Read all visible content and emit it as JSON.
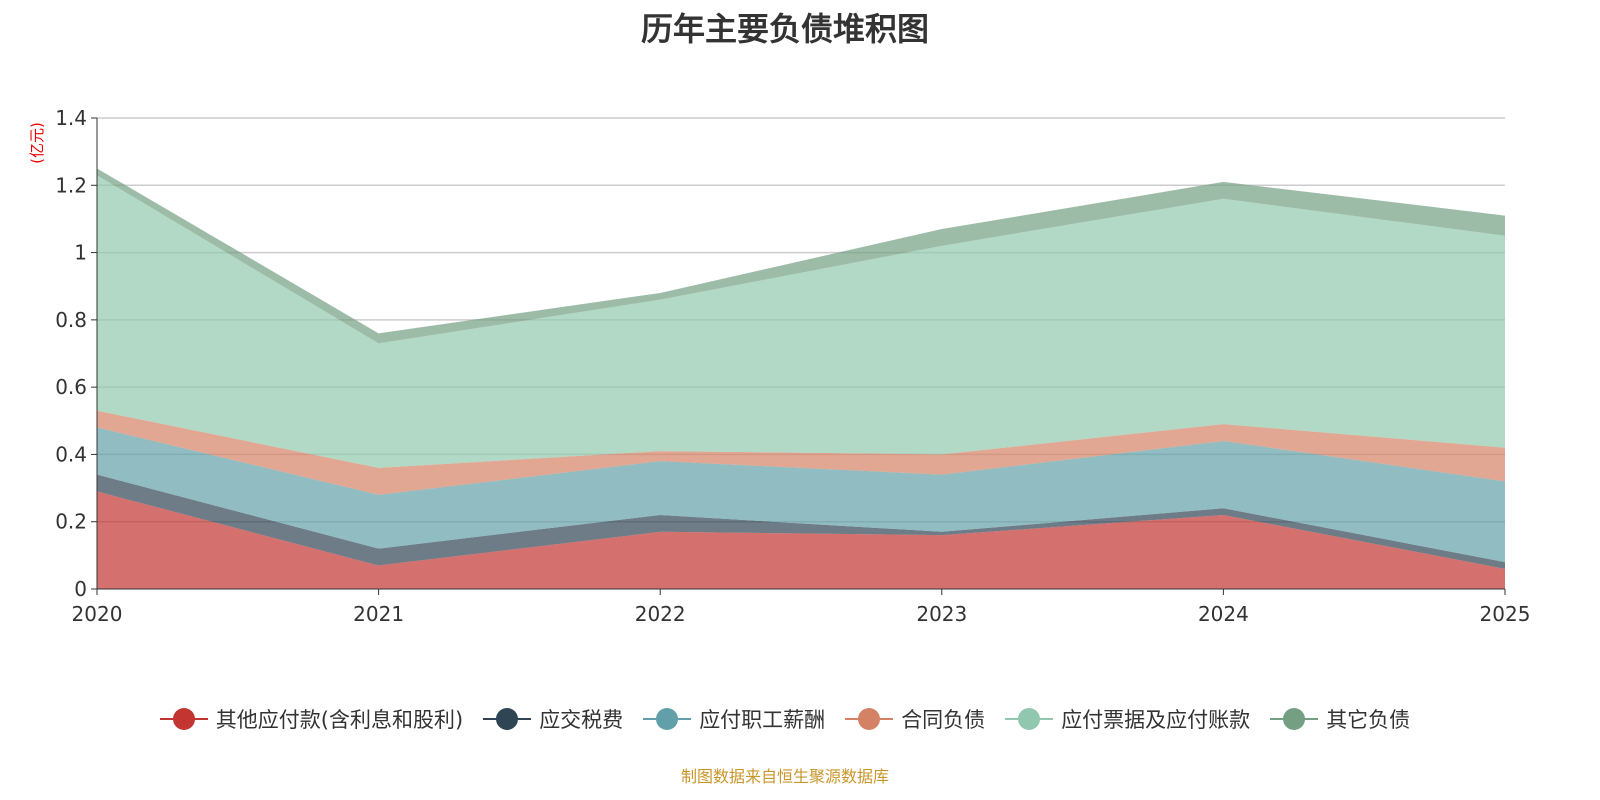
{
  "title": "历年主要负债堆积图",
  "source": "制图数据来自恒生聚源数据库",
  "chart_data": {
    "type": "area",
    "stacked": true,
    "title": "历年主要负债堆积图",
    "ylabel": "(亿元)",
    "xlabel": "",
    "ylim": [
      0,
      1.4
    ],
    "yticks": [
      "0",
      "0.2",
      "0.4",
      "0.6",
      "0.8",
      "1",
      "1.2",
      "1.4"
    ],
    "ytick_values": [
      0,
      0.2,
      0.4,
      0.6,
      0.8,
      1,
      1.2,
      1.4
    ],
    "categories": [
      "2020",
      "2021",
      "2022",
      "2023",
      "2024",
      "2025"
    ],
    "grid": true,
    "legend_position": "bottom",
    "series": [
      {
        "name": "其他应付款(含利息和股利)",
        "color": "#c23531",
        "values": [
          0.29,
          0.07,
          0.17,
          0.16,
          0.22,
          0.06
        ]
      },
      {
        "name": "应交税费",
        "color": "#2f4554",
        "values": [
          0.05,
          0.05,
          0.05,
          0.01,
          0.02,
          0.02
        ]
      },
      {
        "name": "应付职工薪酬",
        "color": "#61a0a8",
        "values": [
          0.14,
          0.16,
          0.16,
          0.17,
          0.2,
          0.24
        ]
      },
      {
        "name": "合同负债",
        "color": "#d48265",
        "values": [
          0.05,
          0.08,
          0.03,
          0.06,
          0.05,
          0.1
        ]
      },
      {
        "name": "应付票据及应付账款",
        "color": "#91c7ae",
        "values": [
          0.7,
          0.37,
          0.45,
          0.62,
          0.67,
          0.63
        ]
      },
      {
        "name": "其它负债",
        "color": "#749f83",
        "values": [
          0.02,
          0.03,
          0.02,
          0.05,
          0.05,
          0.06
        ]
      }
    ]
  }
}
